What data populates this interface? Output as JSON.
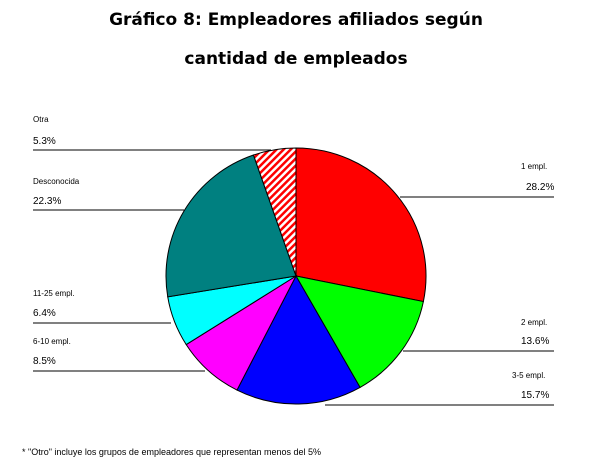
{
  "chart_data": {
    "type": "pie",
    "title_line1": "Gráfico 8: Empleadores afiliados según",
    "title_line2": "cantidad de empleados",
    "slices": [
      {
        "label": "1 empl.",
        "value": 28.2,
        "value_label": "28.2%",
        "color": "#ff0000"
      },
      {
        "label": "2 empl.",
        "value": 13.6,
        "value_label": "13.6%",
        "color": "#00ff00"
      },
      {
        "label": "3-5 empl.",
        "value": 15.7,
        "value_label": "15.7%",
        "color": "#0000ff"
      },
      {
        "label": "6-10 empl.",
        "value": 8.5,
        "value_label": "8.5%",
        "color": "#ff00ff"
      },
      {
        "label": "11-25 empl.",
        "value": 6.4,
        "value_label": "6.4%",
        "color": "#00ffff"
      },
      {
        "label": "Desconocida",
        "value": 22.3,
        "value_label": "22.3%",
        "color": "#008080"
      },
      {
        "label": "Otra",
        "value": 5.3,
        "value_label": "5.3%",
        "color": "#ff0000",
        "pattern": "hatch"
      }
    ],
    "footnote": "* \"Otro\" incluye los grupos de empleadores que representan menos del 5%"
  }
}
